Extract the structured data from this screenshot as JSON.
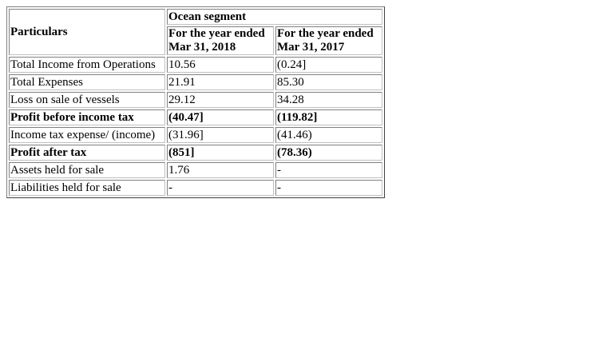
{
  "table": {
    "header": {
      "particulars": "Particulars",
      "segment": "Ocean segment",
      "col1_line1": "For the year ended",
      "col1_line2": "Mar 31, 2018",
      "col2_line1": "For the year ended",
      "col2_line2": "Mar 31, 2017"
    },
    "rows": [
      {
        "label": "Total Income from Operations",
        "v2018": "10.56",
        "v2017": "(0.24]",
        "bold": false
      },
      {
        "label": "Total Expenses",
        "v2018": "21.91",
        "v2017": "85.30",
        "bold": false
      },
      {
        "label": "Loss on sale of vessels",
        "v2018": "29.12",
        "v2017": "34.28",
        "bold": false
      },
      {
        "label": "Profit before income tax",
        "v2018": "(40.47]",
        "v2017": "(119.82]",
        "bold": true
      },
      {
        "label": "Income tax expense/ (income)",
        "v2018": "(31.96]",
        "v2017": "(41.46)",
        "bold": false
      },
      {
        "label": "Profit after tax",
        "v2018": "(851]",
        "v2017": "(78.36)",
        "bold": true
      },
      {
        "label": "Assets held for sale",
        "v2018": "1.76",
        "v2017": "-",
        "bold": false
      },
      {
        "label": "Liabilities held for sale",
        "v2018": "-",
        "v2017": "-",
        "bold": false
      }
    ]
  }
}
